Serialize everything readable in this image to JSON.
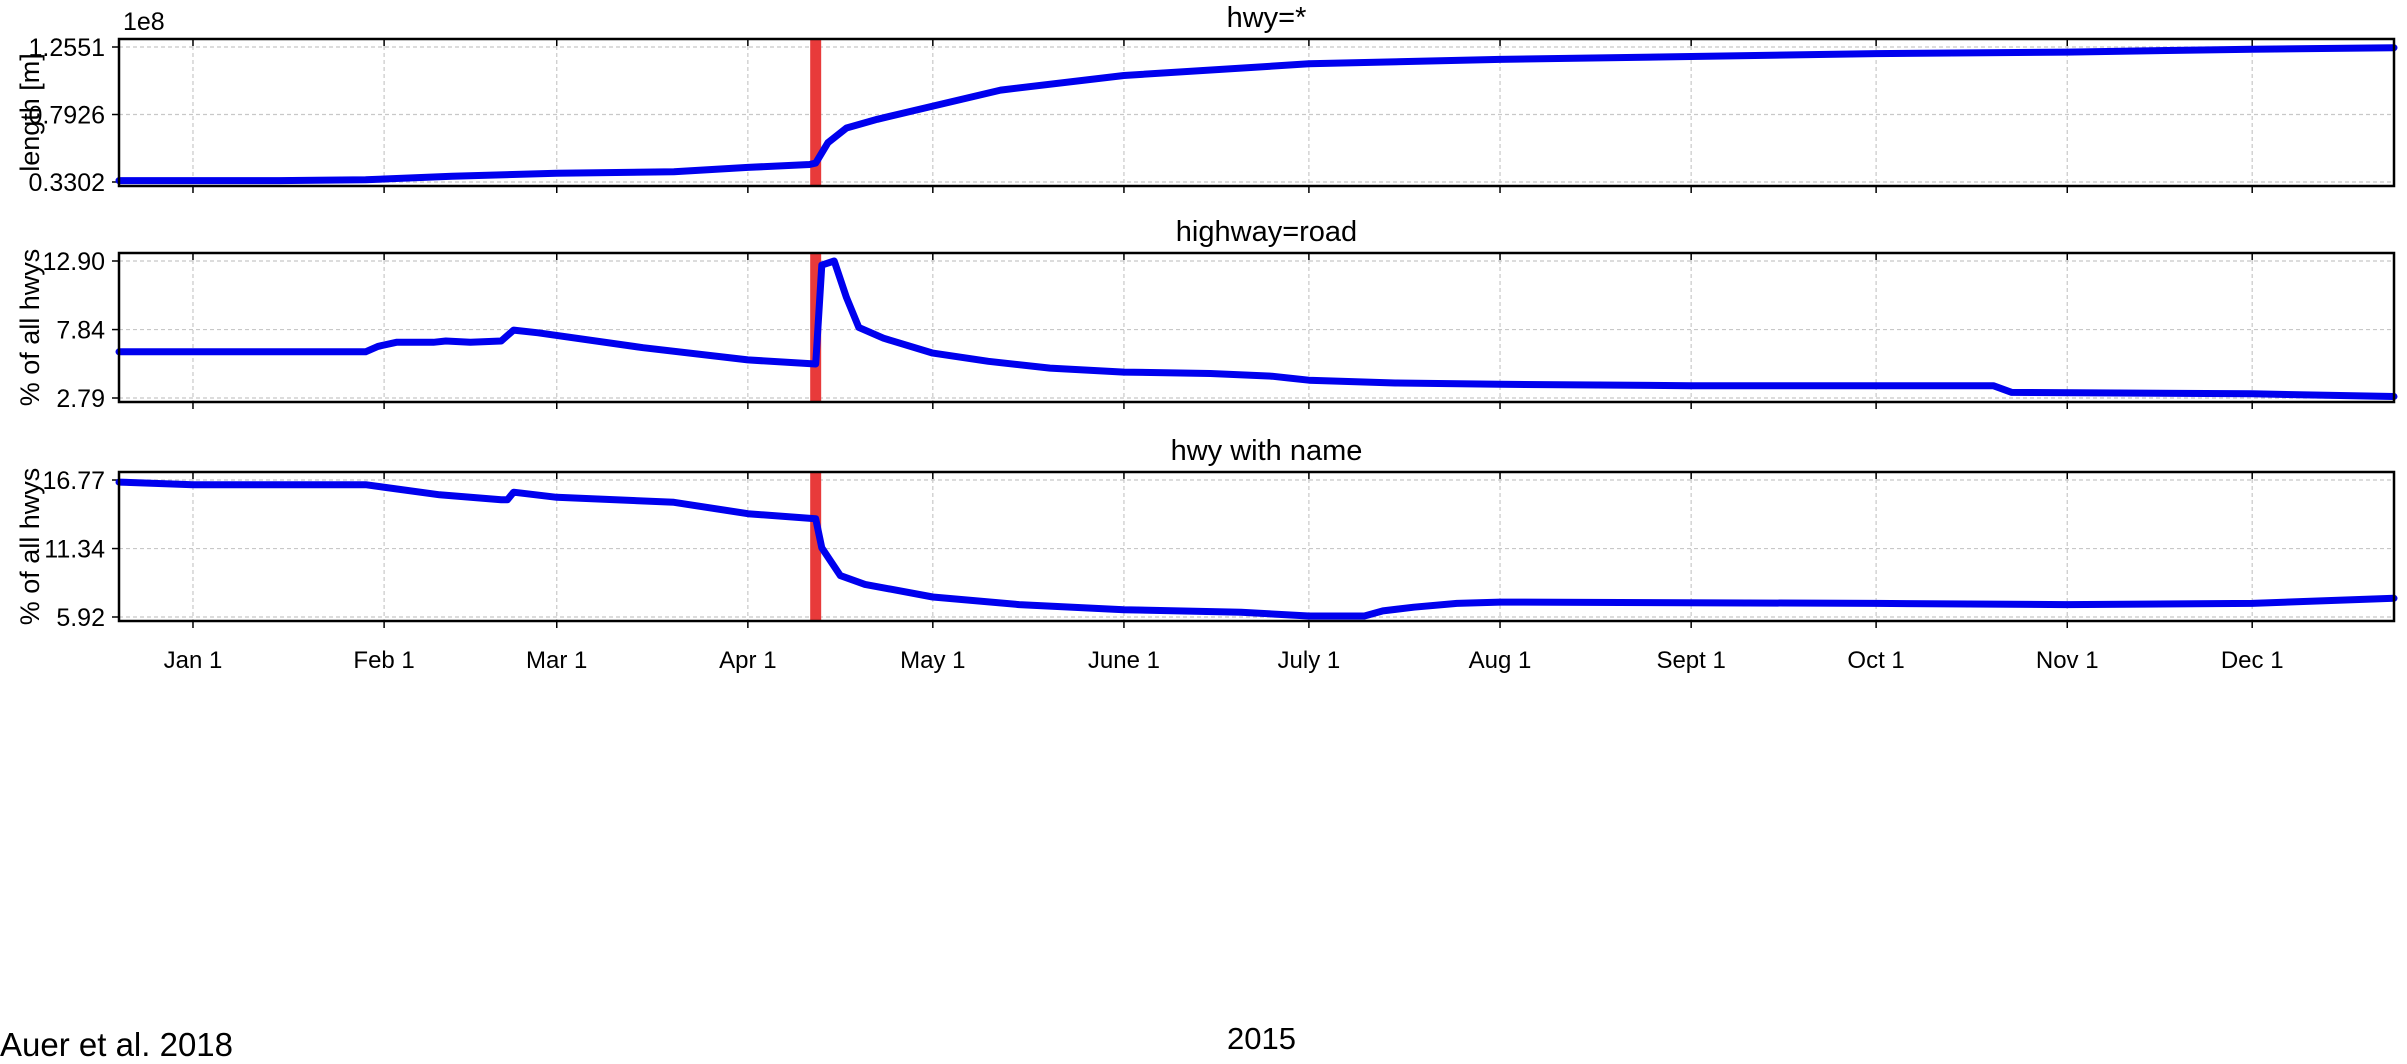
{
  "caption": "Auer et al. 2018",
  "colors": {
    "series": "#0000ee",
    "event_marker": "#e83a3a",
    "grid": "#c8c8c8",
    "axes": "#000000"
  },
  "chart_data": [
    {
      "type": "line",
      "title": "hwy=*",
      "ylabel": "length [m]",
      "y_multiplier_label": "1e8",
      "yticks": [
        "0.3302",
        "0.7926",
        "1.2551"
      ],
      "ylim": [
        0.3302,
        1.2551
      ],
      "xlim": [
        "2014-12-20",
        "2015-12-24"
      ],
      "xticks": [
        {
          "label": "Jan 1",
          "date": "2015-01-01"
        },
        {
          "label": "Feb 1",
          "date": "2015-02-01"
        },
        {
          "label": "Mar 1",
          "date": "2015-03-01"
        },
        {
          "label": "Apr 1",
          "date": "2015-04-01"
        },
        {
          "label": "May 1",
          "date": "2015-05-01"
        },
        {
          "label": "June 1",
          "date": "2015-06-01"
        },
        {
          "label": "July 1",
          "date": "2015-07-01"
        },
        {
          "label": "Aug 1",
          "date": "2015-08-01"
        },
        {
          "label": "Sept 1",
          "date": "2015-09-01"
        },
        {
          "label": "Oct 1",
          "date": "2015-10-01"
        },
        {
          "label": "Nov 1",
          "date": "2015-11-01"
        },
        {
          "label": "Dec 1",
          "date": "2015-12-01"
        }
      ],
      "xlabel": "",
      "grid": true,
      "event_marker_date": "2015-04-12",
      "series": [
        {
          "x": [
            "2014-12-20",
            "2015-01-15",
            "2015-01-29",
            "2015-02-12",
            "2015-03-01",
            "2015-03-20",
            "2015-04-01",
            "2015-04-11",
            "2015-04-12",
            "2015-04-14",
            "2015-04-17",
            "2015-04-22",
            "2015-05-01",
            "2015-05-12",
            "2015-06-01",
            "2015-07-01",
            "2015-08-01",
            "2015-09-01",
            "2015-10-01",
            "2015-11-01",
            "2015-12-01",
            "2015-12-24"
          ],
          "y": [
            0.34,
            0.34,
            0.345,
            0.37,
            0.39,
            0.4,
            0.43,
            0.45,
            0.46,
            0.6,
            0.7,
            0.76,
            0.85,
            0.96,
            1.06,
            1.14,
            1.17,
            1.19,
            1.21,
            1.22,
            1.24,
            1.25
          ]
        }
      ]
    },
    {
      "type": "line",
      "title": "highway=road",
      "ylabel": "% of all hwys",
      "yticks": [
        "2.79",
        "7.84",
        "12.90"
      ],
      "ylim": [
        2.79,
        12.9
      ],
      "xlim": [
        "2014-12-20",
        "2015-12-24"
      ],
      "xticks": [
        {
          "label": "Jan 1",
          "date": "2015-01-01"
        },
        {
          "label": "Feb 1",
          "date": "2015-02-01"
        },
        {
          "label": "Mar 1",
          "date": "2015-03-01"
        },
        {
          "label": "Apr 1",
          "date": "2015-04-01"
        },
        {
          "label": "May 1",
          "date": "2015-05-01"
        },
        {
          "label": "June 1",
          "date": "2015-06-01"
        },
        {
          "label": "July 1",
          "date": "2015-07-01"
        },
        {
          "label": "Aug 1",
          "date": "2015-08-01"
        },
        {
          "label": "Sept 1",
          "date": "2015-09-01"
        },
        {
          "label": "Oct 1",
          "date": "2015-10-01"
        },
        {
          "label": "Nov 1",
          "date": "2015-11-01"
        },
        {
          "label": "Dec 1",
          "date": "2015-12-01"
        }
      ],
      "xlabel": "",
      "grid": true,
      "event_marker_date": "2015-04-12",
      "series": [
        {
          "x": [
            "2014-12-20",
            "2015-01-29",
            "2015-01-31",
            "2015-02-03",
            "2015-02-09",
            "2015-02-11",
            "2015-02-15",
            "2015-02-20",
            "2015-02-22",
            "2015-02-26",
            "2015-03-15",
            "2015-04-01",
            "2015-04-12",
            "2015-04-13",
            "2015-04-15",
            "2015-04-17",
            "2015-04-19",
            "2015-04-23",
            "2015-05-01",
            "2015-05-10",
            "2015-05-20",
            "2015-06-01",
            "2015-06-15",
            "2015-06-25",
            "2015-07-01",
            "2015-07-15",
            "2015-08-01",
            "2015-09-01",
            "2015-10-01",
            "2015-10-20",
            "2015-10-23",
            "2015-12-01",
            "2015-12-24"
          ],
          "y": [
            6.2,
            6.2,
            6.6,
            6.9,
            6.9,
            7.0,
            6.9,
            7.0,
            7.8,
            7.6,
            6.5,
            5.6,
            5.3,
            12.6,
            12.9,
            10.2,
            8.0,
            7.2,
            6.1,
            5.5,
            5.0,
            4.7,
            4.6,
            4.4,
            4.1,
            3.9,
            3.8,
            3.7,
            3.7,
            3.7,
            3.2,
            3.1,
            2.9
          ]
        }
      ]
    },
    {
      "type": "line",
      "title": "hwy with name",
      "ylabel": "% of all hwys",
      "yticks": [
        "5.92",
        "11.34",
        "16.77"
      ],
      "ylim": [
        5.92,
        16.77
      ],
      "xlim": [
        "2014-12-20",
        "2015-12-24"
      ],
      "xticks": [
        {
          "label": "Jan 1",
          "date": "2015-01-01"
        },
        {
          "label": "Feb 1",
          "date": "2015-02-01"
        },
        {
          "label": "Mar 1",
          "date": "2015-03-01"
        },
        {
          "label": "Apr 1",
          "date": "2015-04-01"
        },
        {
          "label": "May 1",
          "date": "2015-05-01"
        },
        {
          "label": "June 1",
          "date": "2015-06-01"
        },
        {
          "label": "July 1",
          "date": "2015-07-01"
        },
        {
          "label": "Aug 1",
          "date": "2015-08-01"
        },
        {
          "label": "Sept 1",
          "date": "2015-09-01"
        },
        {
          "label": "Oct 1",
          "date": "2015-10-01"
        },
        {
          "label": "Nov 1",
          "date": "2015-11-01"
        },
        {
          "label": "Dec 1",
          "date": "2015-12-01"
        }
      ],
      "xlabel": "2015",
      "grid": true,
      "event_marker_date": "2015-04-12",
      "series": [
        {
          "x": [
            "2014-12-20",
            "2015-01-01",
            "2015-01-29",
            "2015-02-10",
            "2015-02-20",
            "2015-02-21",
            "2015-02-22",
            "2015-03-01",
            "2015-03-20",
            "2015-04-01",
            "2015-04-12",
            "2015-04-13",
            "2015-04-16",
            "2015-04-20",
            "2015-05-01",
            "2015-05-15",
            "2015-06-01",
            "2015-06-20",
            "2015-07-01",
            "2015-07-10",
            "2015-07-13",
            "2015-07-18",
            "2015-07-25",
            "2015-08-01",
            "2015-10-01",
            "2015-11-01",
            "2015-12-01",
            "2015-12-24"
          ],
          "y": [
            16.6,
            16.4,
            16.4,
            15.6,
            15.2,
            15.2,
            15.8,
            15.4,
            15.0,
            14.1,
            13.7,
            11.4,
            9.2,
            8.5,
            7.5,
            6.9,
            6.5,
            6.3,
            6.0,
            6.0,
            6.4,
            6.7,
            7.0,
            7.1,
            7.0,
            6.9,
            7.0,
            7.4
          ]
        }
      ]
    }
  ]
}
